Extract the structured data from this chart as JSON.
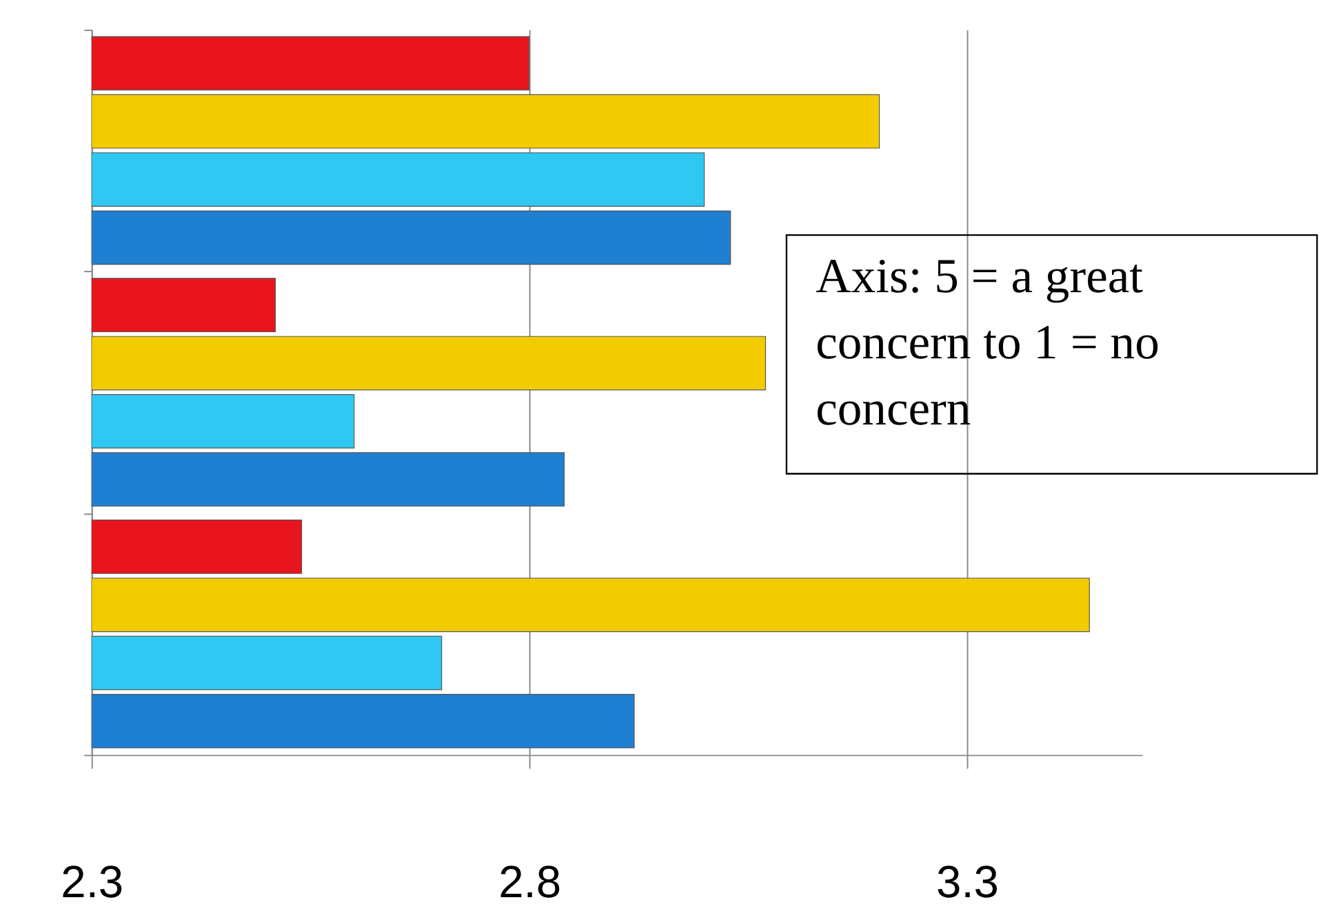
{
  "chart_data": {
    "type": "bar",
    "orientation": "horizontal",
    "categories": [
      null,
      null,
      null
    ],
    "series": [
      {
        "color": "#e8141e",
        "values": [
          2.8,
          2.51,
          2.54
        ]
      },
      {
        "color": "#f2cc00",
        "values": [
          3.2,
          3.07,
          3.44
        ]
      },
      {
        "color": "#2ec8f2",
        "values": [
          3.0,
          2.6,
          2.7
        ]
      },
      {
        "color": "#1f7fd0",
        "values": [
          3.03,
          2.84,
          2.92
        ]
      }
    ],
    "xlim": [
      2.3,
      3.5
    ],
    "xticks": [
      2.3,
      2.8,
      3.3
    ],
    "grid": "x",
    "tick_labels": "x",
    "legend": false,
    "annotations": [
      "Axis: 5 = a great concern to 1 = no concern"
    ]
  }
}
